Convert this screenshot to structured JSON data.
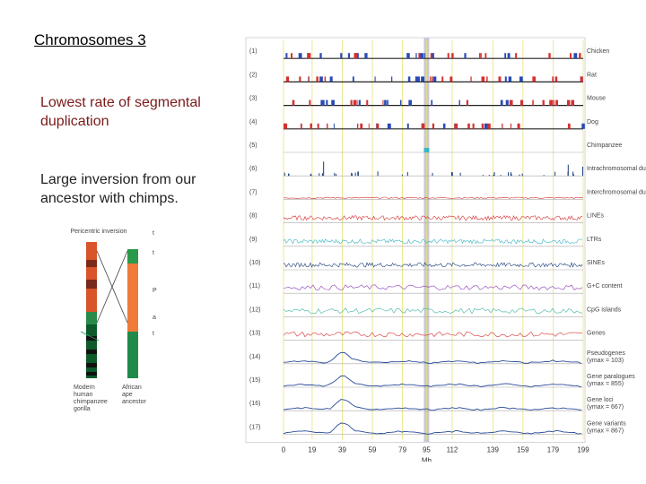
{
  "slide": {
    "title": "Chromosomes 3",
    "note1": "Lowest rate of segmental duplication",
    "note2": "Large inversion from our ancestor with chimps."
  },
  "ideogram": {
    "heading": "Pericentric inversion",
    "left_caption": "Modern human chimpanzee gorilla",
    "right_caption": "African ape ancestor",
    "side_marks": [
      "t",
      "t",
      "P",
      "a",
      "t"
    ]
  },
  "figure": {
    "x_axis_label": "Mb",
    "ticks": [
      "0",
      "19",
      "39",
      "59",
      "79",
      "95",
      "112",
      "139",
      "159",
      "179",
      "199"
    ],
    "tick_positions_mb": [
      0,
      19,
      39,
      59,
      79,
      95,
      112,
      139,
      159,
      179,
      199
    ],
    "highlight_mb": 95,
    "tracks": [
      {
        "num": "(1)",
        "label": "Chicken",
        "kind": "blocks"
      },
      {
        "num": "(2)",
        "label": "Rat",
        "kind": "blocks"
      },
      {
        "num": "(3)",
        "label": "Mouse",
        "kind": "blocks"
      },
      {
        "num": "(4)",
        "label": "Dog",
        "kind": "blocks"
      },
      {
        "num": "(5)",
        "label": "Chimpanzee",
        "kind": "line"
      },
      {
        "num": "(6)",
        "label": "Intrachromosomal duplications",
        "kind": "spikes"
      },
      {
        "num": "(7)",
        "label": "Interchromosomal duplications",
        "kind": "noise"
      },
      {
        "num": "(8)",
        "label": "LINEs",
        "kind": "dense"
      },
      {
        "num": "(9)",
        "label": "LTRs",
        "kind": "dense"
      },
      {
        "num": "(10)",
        "label": "SINEs",
        "kind": "dense"
      },
      {
        "num": "(11)",
        "label": "G+C content",
        "kind": "wave"
      },
      {
        "num": "(12)",
        "label": "CpG islands",
        "kind": "wave"
      },
      {
        "num": "(13)",
        "label": "Genes",
        "kind": "wave"
      },
      {
        "num": "(14)",
        "label": "Pseudogenes",
        "sub": "(ymax = 103)",
        "kind": "smooth"
      },
      {
        "num": "(15)",
        "label": "Gene paralogues",
        "sub": "(ymax = 855)",
        "kind": "smooth"
      },
      {
        "num": "(16)",
        "label": "Gene loci",
        "sub": "(ymax = 667)",
        "kind": "smooth"
      },
      {
        "num": "(17)",
        "label": "Gene variants",
        "sub": "(ymax = 867)",
        "kind": "smooth"
      }
    ]
  }
}
